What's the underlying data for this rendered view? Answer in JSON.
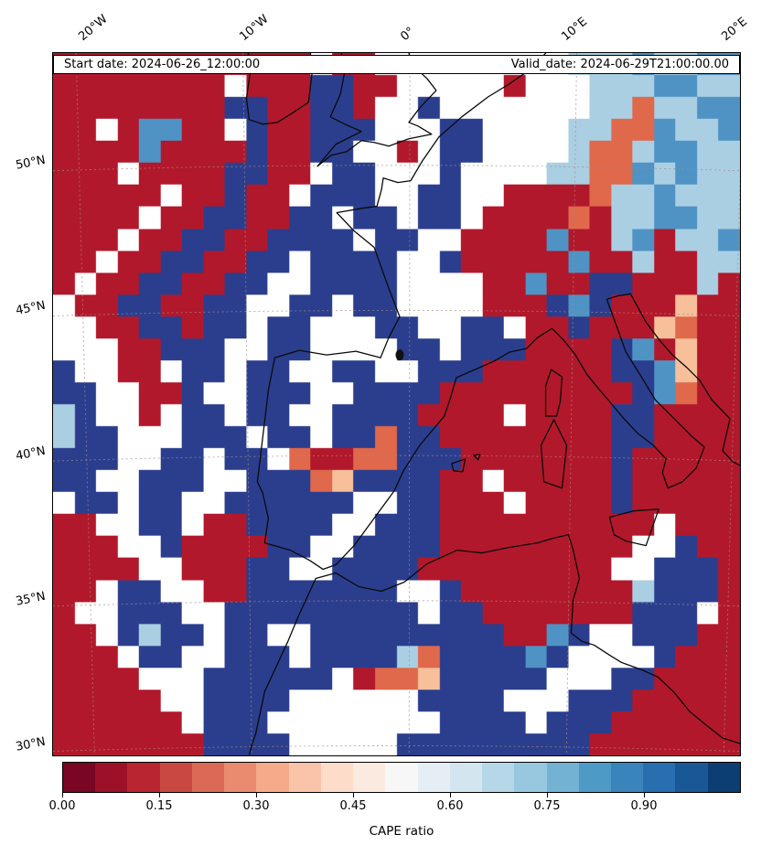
{
  "chart_data": {
    "type": "heatmap",
    "annotations": {
      "start_date": "Start date: 2024-06-26_12:00:00",
      "valid_date": "Valid_date: 2024-06-29T21:00:00.00"
    },
    "x_axis": {
      "ticks": [
        {
          "label": "20°W",
          "lon": -20
        },
        {
          "label": "10°W",
          "lon": -10
        },
        {
          "label": "0°",
          "lon": 0
        },
        {
          "label": "10°E",
          "lon": 10
        },
        {
          "label": "20°E",
          "lon": 20
        }
      ],
      "range_lon": [
        -22.2,
        20.6
      ]
    },
    "y_axis": {
      "ticks": [
        {
          "label": "50°N",
          "lat": 50
        },
        {
          "label": "45°N",
          "lat": 45
        },
        {
          "label": "40°N",
          "lat": 40
        },
        {
          "label": "35°N",
          "lat": 35
        },
        {
          "label": "30°N",
          "lat": 30
        }
      ],
      "range_lat": [
        29.7,
        53.9
      ]
    },
    "colorbar": {
      "label": "CAPE ratio",
      "ticks": [
        {
          "label": "0.00",
          "value": 0.0
        },
        {
          "label": "0.15",
          "value": 0.15
        },
        {
          "label": "0.30",
          "value": 0.3
        },
        {
          "label": "0.45",
          "value": 0.45
        },
        {
          "label": "0.60",
          "value": 0.6
        },
        {
          "label": "0.75",
          "value": 0.75
        },
        {
          "label": "0.90",
          "value": 0.9
        }
      ],
      "vmin": 0.0,
      "vmax": 1.05,
      "segments": 21,
      "colormap_name": "RdBu",
      "colormap_anchors": [
        "#67001f",
        "#b2182b",
        "#d6604d",
        "#f4a582",
        "#fddbc7",
        "#f7f7f7",
        "#d1e5f0",
        "#92c5de",
        "#4393c3",
        "#2166ac",
        "#053061"
      ]
    },
    "grid": {
      "description": "Coarse 32x32 sampled approximation of the filled-contour CAPE-ratio field over the W-Europe/NE-Atlantic domain. Each character is one cell; value_map gives the approximate CAPE ratio; 'w' = masked / no data (white).",
      "value_map": {
        "r": 0.05,
        "o": 0.25,
        "y": 0.35,
        "c": 0.65,
        "b": 0.8,
        "B": 0.97,
        "w": null
      },
      "palette": {
        "r": "#b2182b",
        "o": "#e0684b",
        "y": "#f7bf9a",
        "c": "#aacfe3",
        "b": "#4f93c5",
        "B": "#2b3e8e",
        "w": "#ffffff"
      },
      "rows": [
        "rrrrrrrrrrrrwrrwwwwwwwwwcccbccbb",
        "rrrrrrrrwrrrBBrrwwwwwrwwwcccbbcc",
        "rrrrrrrrBBrrBBrwwBwwwwwwwccoccbb",
        "rrwrbbrrwBrrBBBwwwBBwwwwccoobccb",
        "rrrrbrrrrBrrBBwwrwBBwwwwcoocbbcc",
        "rrrwrrrrBBrrwBBwwwBwwwwccoobcbcc",
        "rrrrrwrrBrrwBBBwwBBwwrrrroccbccc",
        "rrrrwrrBBrrBBwBBwBBwrrrrorccbbcc",
        "rrrwrrBBrrBBBBwBBwwrrrrbrrcbrccb",
        "rrwrrBBrrBBwBBBBwwBrrrrrbrrcrrcc",
        "rwrrBBrrBBwwBBBBwwwwrrbrrBBrrrcr",
        "wrrBBrrBBwwBBwBBwwwwrrrBbBrrryrr",
        "wwrrBBrBBwBBwwwBBwwBBwrrBrrryorr",
        "wwwrrBBBwwBBwwwwBBwBBBrrrrBbryrr",
        "BwwrrwBBwBBwwBBwwBBBrrrrrrBBbyrr",
        "BBwwrrBwwBBBwwBBBBrrrrrrrrrBborr",
        "cBwwrwBBwBBwwBBBBrrrrwrrrrBBrrrr",
        "cBBwwwBBBwBBwBBoBBrrrrrrrrBBrrrr",
        "BBBwwBBwBBworrooBBBrrrrrrrBrrrrr",
        "BBwwBBBwwBBBoyBBBBrrwrrrrrBrrrrr",
        "wBBwBBwwBBBBBBwwBBrrrwrrrrBrrrrr",
        "rrwwBBwrrBBBBwwBBBrrrrrrrrrrwrrr",
        "rrrwwBrrrrBBwwBBBBrrrrrrrrrwwBrr",
        "rrrrwwrrrBBwwBBBBrrrrrrrrrwwBBBr",
        "rrwBBwwrrBBBBBBBwwBrrrrrrrrcBBBr",
        "rwwBBBwwBBBBBBBBBwBBrrrrrrrBBBwr",
        "rrwBcBBwBBwwBBBBBBBBBrrbBwwBBBrr",
        "rrrwBBwwBBBwBBBBcoBBBBbBwwwwBrrr",
        "rrrrwwwBBBBBBwrooyBBBBBwwwBBrrrr",
        "rrrrrwwBBBBwwwwwwBBBBwwwBBBrrrrr",
        "rrrrrrwBBBwwwwwwwwBBBBwBBBrrrrrr",
        "rrrrrrrBBBBwwwwwBBBBBBBBBrrrrrrr"
      ]
    }
  }
}
